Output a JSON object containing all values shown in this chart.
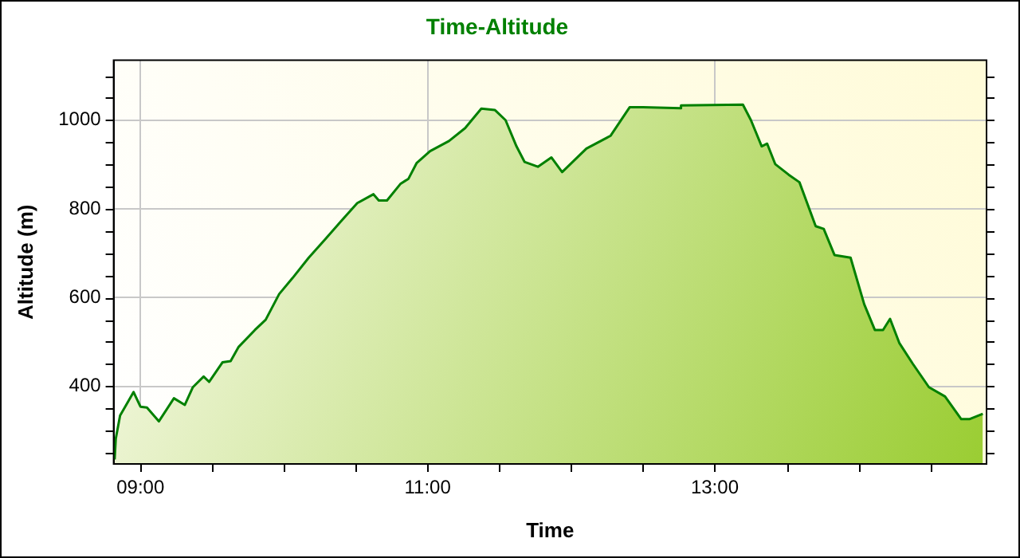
{
  "chart_data": {
    "type": "area",
    "title": "Time-Altitude",
    "xlabel": "Time",
    "ylabel": "Altitude (m)",
    "xlim": [
      8.813,
      14.893
    ],
    "xticks": [
      {
        "value": 9,
        "label": "09:00"
      },
      {
        "value": 9.5,
        "label": null
      },
      {
        "value": 10,
        "label": null
      },
      {
        "value": 10.5,
        "label": null
      },
      {
        "value": 11,
        "label": "11:00"
      },
      {
        "value": 11.5,
        "label": null
      },
      {
        "value": 12,
        "label": null
      },
      {
        "value": 12.5,
        "label": null
      },
      {
        "value": 13,
        "label": "13:00"
      },
      {
        "value": 13.5,
        "label": null
      },
      {
        "value": 14,
        "label": null
      },
      {
        "value": 14.5,
        "label": null
      }
    ],
    "ylim": [
      225,
      1135
    ],
    "yticks": [
      {
        "value": 250,
        "label": null
      },
      {
        "value": 300,
        "label": null
      },
      {
        "value": 350,
        "label": null
      },
      400,
      {
        "value": 450,
        "label": null
      },
      {
        "value": 500,
        "label": null
      },
      {
        "value": 550,
        "label": null
      },
      600,
      {
        "value": 650,
        "label": null
      },
      {
        "value": 700,
        "label": null
      },
      {
        "value": 750,
        "label": null
      },
      800,
      {
        "value": 850,
        "label": null
      },
      {
        "value": 900,
        "label": null
      },
      {
        "value": 950,
        "label": null
      },
      1000,
      {
        "value": 1050,
        "label": null
      },
      {
        "value": 1100,
        "label": null
      }
    ],
    "grid": true,
    "legend": false,
    "marker": "none",
    "line_style": "solid",
    "series": [
      {
        "color": "#008000",
        "x": [
          8.82,
          8.828,
          8.858,
          8.952,
          9.0,
          9.045,
          9.128,
          9.233,
          9.309,
          9.365,
          9.44,
          9.478,
          9.571,
          9.628,
          9.684,
          9.797,
          9.872,
          9.966,
          10.059,
          10.172,
          10.285,
          10.397,
          10.51,
          10.623,
          10.66,
          10.717,
          10.81,
          10.867,
          10.923,
          11.017,
          11.149,
          11.261,
          11.374,
          11.468,
          11.543,
          11.619,
          11.675,
          11.768,
          11.862,
          11.937,
          12.106,
          12.275,
          12.407,
          12.5,
          12.764,
          12.765,
          13.196,
          13.252,
          13.327,
          13.365,
          13.421,
          13.515,
          13.59,
          13.703,
          13.759,
          13.834,
          13.946,
          14.041,
          14.115,
          14.172,
          14.221,
          14.285,
          14.379,
          14.492,
          14.604,
          14.717,
          14.773,
          14.867
        ],
        "values": [
          235,
          282,
          334,
          387,
          354,
          352,
          321,
          373,
          358,
          398,
          422,
          410,
          454,
          457,
          489,
          527,
          550,
          608,
          644,
          690,
          731,
          772,
          813,
          833,
          819,
          819,
          856,
          868,
          903,
          930,
          953,
          982,
          1026,
          1023,
          1000,
          941,
          906,
          895,
          916,
          883,
          936,
          965,
          1029,
          1029,
          1027,
          1033,
          1035,
          1000,
          941,
          947,
          901,
          877,
          860,
          761,
          755,
          696,
          690,
          585,
          527,
          527,
          552,
          498,
          451,
          398,
          377,
          326,
          326,
          338
        ]
      }
    ]
  }
}
